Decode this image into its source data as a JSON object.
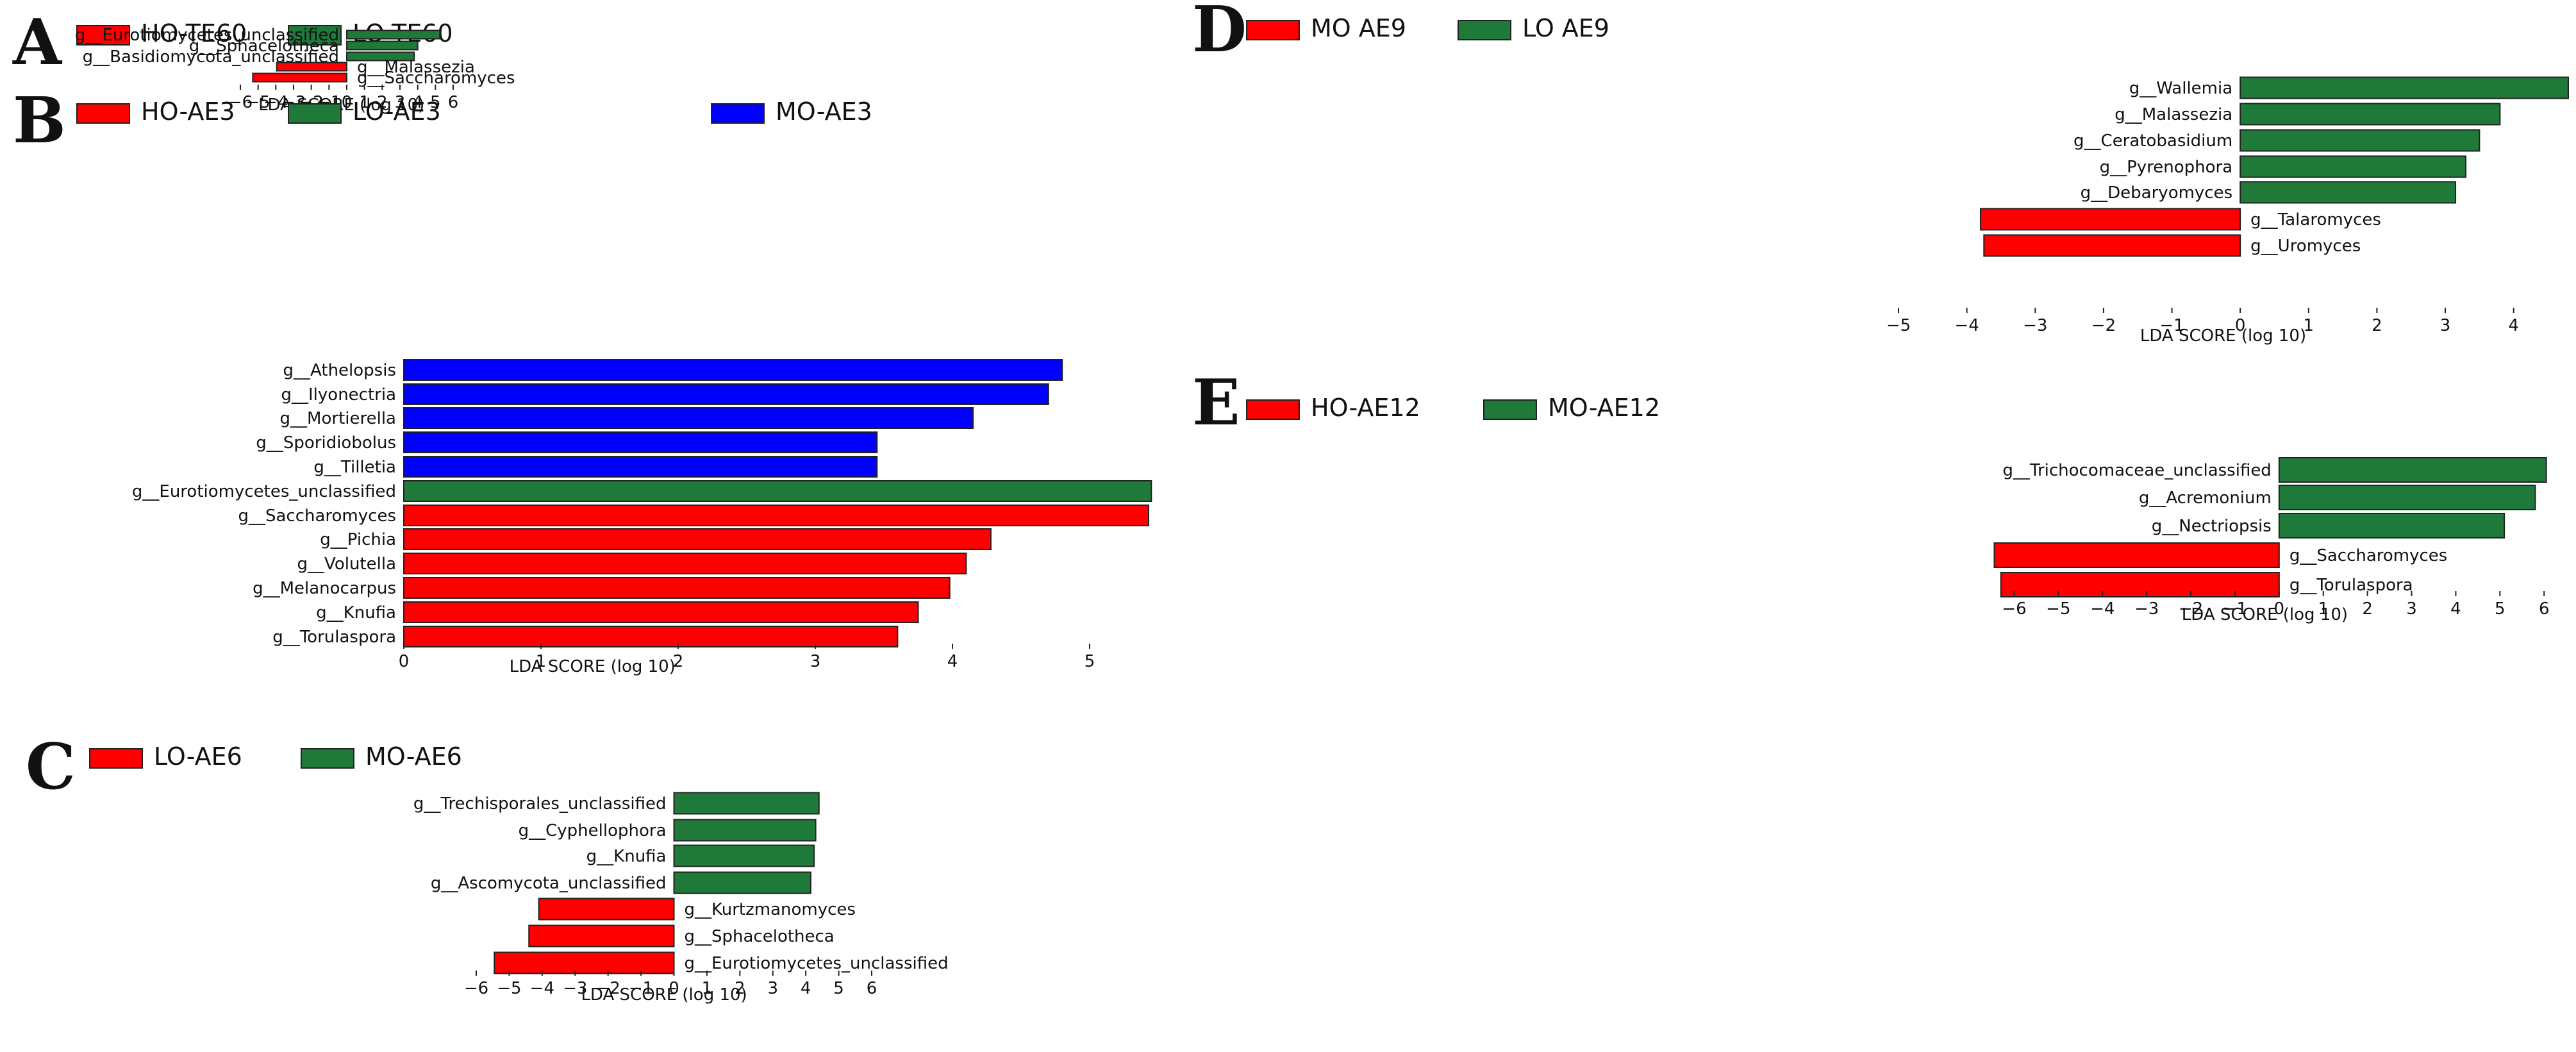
{
  "chart_data": [
    {
      "type": "bar",
      "panel_label": "A",
      "legend": [
        {
          "name": "HO-TE60",
          "color": "#ff0000"
        },
        {
          "name": "LO-TE60",
          "color": "#1f7a3a"
        }
      ],
      "xlabel": "LDA SCORE (log 10)",
      "xlim": [
        -6,
        6
      ],
      "xticks": [
        -6,
        -5,
        -4,
        -3,
        -2,
        -1,
        0,
        1,
        2,
        3,
        4,
        5,
        6
      ],
      "bars": [
        {
          "label": "g__Eurotiomycetes_unclassified",
          "value": 5.25,
          "group": "LO-TE60"
        },
        {
          "label": "g__Sphacelotheca",
          "value": 4.0,
          "group": "LO-TE60"
        },
        {
          "label": "g__Basidiomycota_unclassified",
          "value": 3.8,
          "group": "LO-TE60"
        },
        {
          "label": "g__Malassezia",
          "value": -3.95,
          "group": "HO-TE60"
        },
        {
          "label": "g__Saccharomyces",
          "value": -5.3,
          "group": "HO-TE60"
        }
      ]
    },
    {
      "type": "bar",
      "panel_label": "B",
      "legend": [
        {
          "name": "HO-AE3",
          "color": "#ff0000"
        },
        {
          "name": "LO-AE3",
          "color": "#1f7a3a"
        },
        {
          "name": "MO-AE3",
          "color": "#0000ff"
        }
      ],
      "xlabel": "LDA SCORE (log 10)",
      "xlim": [
        0,
        5.5
      ],
      "xticks": [
        0,
        1,
        2,
        3,
        4,
        5
      ],
      "bars": [
        {
          "label": "g__Athelopsis",
          "value": 4.8,
          "group": "MO-AE3"
        },
        {
          "label": "g__Ilyonectria",
          "value": 4.7,
          "group": "MO-AE3"
        },
        {
          "label": "g__Mortierella",
          "value": 4.15,
          "group": "MO-AE3"
        },
        {
          "label": "g__Sporidiobolus",
          "value": 3.45,
          "group": "MO-AE3"
        },
        {
          "label": "g__Tilletia",
          "value": 3.45,
          "group": "MO-AE3"
        },
        {
          "label": "g__Eurotiomycetes_unclassified",
          "value": 5.45,
          "group": "LO-AE3"
        },
        {
          "label": "g__Saccharomyces",
          "value": 5.43,
          "group": "HO-AE3"
        },
        {
          "label": "g__Pichia",
          "value": 4.28,
          "group": "HO-AE3"
        },
        {
          "label": "g__Volutella",
          "value": 4.1,
          "group": "HO-AE3"
        },
        {
          "label": "g__Melanocarpus",
          "value": 3.98,
          "group": "HO-AE3"
        },
        {
          "label": "g__Knufia",
          "value": 3.75,
          "group": "HO-AE3"
        },
        {
          "label": "g__Torulaspora",
          "value": 3.6,
          "group": "HO-AE3"
        }
      ]
    },
    {
      "type": "bar",
      "panel_label": "C",
      "legend": [
        {
          "name": "LO-AE6",
          "color": "#ff0000"
        },
        {
          "name": "MO-AE6",
          "color": "#1f7a3a"
        }
      ],
      "xlabel": "LDA SCORE (log 10)",
      "xlim": [
        -6,
        6
      ],
      "xticks": [
        -6,
        -5,
        -4,
        -3,
        -2,
        -1,
        0,
        1,
        2,
        3,
        4,
        5,
        6
      ],
      "bars": [
        {
          "label": "g__Trechisporales_unclassified",
          "value": 4.4,
          "group": "MO-AE6"
        },
        {
          "label": "g__Cyphellophora",
          "value": 4.3,
          "group": "MO-AE6"
        },
        {
          "label": "g__Knufia",
          "value": 4.25,
          "group": "MO-AE6"
        },
        {
          "label": "g__Ascomycota_unclassified",
          "value": 4.15,
          "group": "MO-AE6"
        },
        {
          "label": "g__Kurtzmanomyces",
          "value": -4.1,
          "group": "LO-AE6"
        },
        {
          "label": "g__Sphacelotheca",
          "value": -4.4,
          "group": "LO-AE6"
        },
        {
          "label": "g__Eurotiomycetes_unclassified",
          "value": -5.45,
          "group": "LO-AE6"
        }
      ]
    },
    {
      "type": "bar",
      "panel_label": "D",
      "legend": [
        {
          "name": "MO AE9",
          "color": "#ff0000"
        },
        {
          "name": "LO AE9",
          "color": "#1f7a3a"
        }
      ],
      "xlabel": "LDA SCORE (log 10)",
      "xlim": [
        -5,
        4.8
      ],
      "xticks": [
        -5,
        -4,
        -3,
        -2,
        -1,
        0,
        1,
        2,
        3,
        4
      ],
      "bars": [
        {
          "label": "g__Wallemia",
          "value": 4.8,
          "group": "LO AE9"
        },
        {
          "label": "g__Malassezia",
          "value": 3.8,
          "group": "LO AE9"
        },
        {
          "label": "g__Ceratobasidium",
          "value": 3.5,
          "group": "LO AE9"
        },
        {
          "label": "g__Pyrenophora",
          "value": 3.3,
          "group": "LO AE9"
        },
        {
          "label": "g__Debaryomyces",
          "value": 3.15,
          "group": "LO AE9"
        },
        {
          "label": "g__Talaromyces",
          "value": -3.8,
          "group": "MO AE9"
        },
        {
          "label": "g__Uromyces",
          "value": -3.75,
          "group": "MO AE9"
        }
      ]
    },
    {
      "type": "bar",
      "panel_label": "E",
      "legend": [
        {
          "name": "HO-AE12",
          "color": "#ff0000"
        },
        {
          "name": "MO-AE12",
          "color": "#1f7a3a"
        }
      ],
      "xlabel": "LDA SCORE (log 10)",
      "xlim": [
        -6.5,
        6.2
      ],
      "xticks": [
        -6,
        -5,
        -4,
        -3,
        -2,
        -1,
        0,
        1,
        2,
        3,
        4,
        5,
        6
      ],
      "bars": [
        {
          "label": "g__Trichocomaceae_unclassified",
          "value": 6.05,
          "group": "MO-AE12"
        },
        {
          "label": "g__Acremonium",
          "value": 5.8,
          "group": "MO-AE12"
        },
        {
          "label": "g__Nectriopsis",
          "value": 5.1,
          "group": "MO-AE12"
        },
        {
          "label": "g__Saccharomyces",
          "value": -6.45,
          "group": "HO-AE12"
        },
        {
          "label": "g__Torulaspora",
          "value": -6.3,
          "group": "HO-AE12"
        }
      ]
    }
  ]
}
